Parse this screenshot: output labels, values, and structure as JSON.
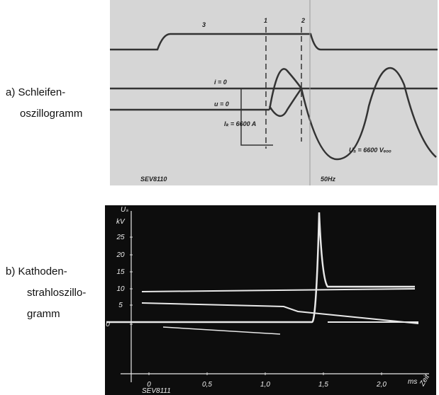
{
  "captions": {
    "a": [
      "a) Schleifen-",
      "oszillogramm"
    ],
    "b": [
      "b) Kathoden-",
      "strahloszillo-",
      "gramm"
    ]
  },
  "panel_a": {
    "trace_3": "3",
    "marker_1": "1",
    "marker_2": "2",
    "i_zero": "i = 0",
    "u_zero": "u = 0",
    "ik": "Iₖ = 6600 A",
    "ua": "Uₐ = 6600 Vₑₒₒ",
    "ref": "SEV8110",
    "freq": "50Hz"
  },
  "panel_b": {
    "y_label": "Uₛ",
    "y_unit": "kV",
    "yticks": [
      "25",
      "20",
      "15",
      "10",
      "5",
      "0"
    ],
    "xticks": [
      "0",
      "0,5",
      "1,0",
      "1,5",
      "2,0"
    ],
    "x_unit": "ms",
    "x_label": "Zeit",
    "ref": "SEV8111"
  }
}
